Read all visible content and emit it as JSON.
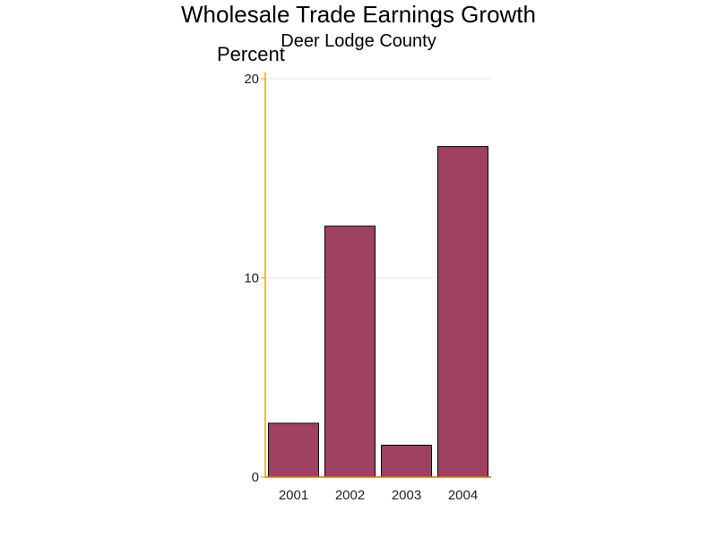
{
  "chart_data": {
    "type": "bar",
    "title": "Wholesale Trade Earnings Growth",
    "subtitle": "Deer Lodge County",
    "xlabel": "",
    "ylabel": "Percent",
    "categories": [
      "2001",
      "2002",
      "2003",
      "2004"
    ],
    "values": [
      2.7,
      12.6,
      1.6,
      16.6
    ],
    "ylim": [
      0,
      20
    ],
    "yticks": [
      "0",
      "10",
      "20"
    ],
    "grid": true,
    "legend": "none"
  },
  "colors": {
    "bar_fill": "#9e4163",
    "bar_stroke": "#000000",
    "y_axis": "#e0a800",
    "x_axis": "#e07000",
    "grid": "#e6e6e6"
  }
}
